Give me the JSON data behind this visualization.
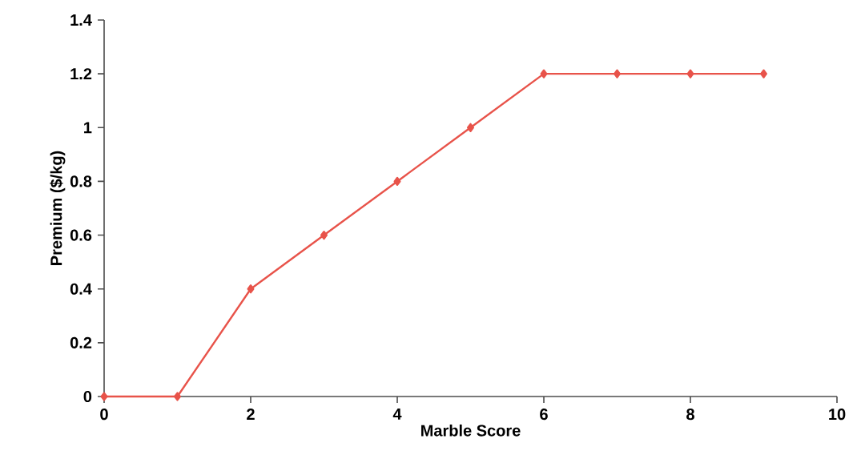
{
  "chart_data": {
    "type": "line",
    "xlabel": "Marble Score",
    "ylabel": "Premium ($/kg)",
    "x": [
      0,
      1,
      2,
      3,
      4,
      5,
      6,
      7,
      8,
      9
    ],
    "values": [
      0,
      0,
      0.4,
      0.6,
      0.8,
      1.0,
      1.2,
      1.2,
      1.2,
      1.2
    ],
    "color": "#e8534a",
    "marker": "diamond",
    "line_style": "solid",
    "grid": false,
    "xlim": [
      0,
      10
    ],
    "xticks": [
      0,
      2,
      4,
      6,
      8,
      10
    ],
    "ylim": [
      0,
      1.4
    ],
    "yticks": [
      0,
      0.2,
      0.4,
      0.6,
      0.8,
      1,
      1.2,
      1.4
    ]
  }
}
